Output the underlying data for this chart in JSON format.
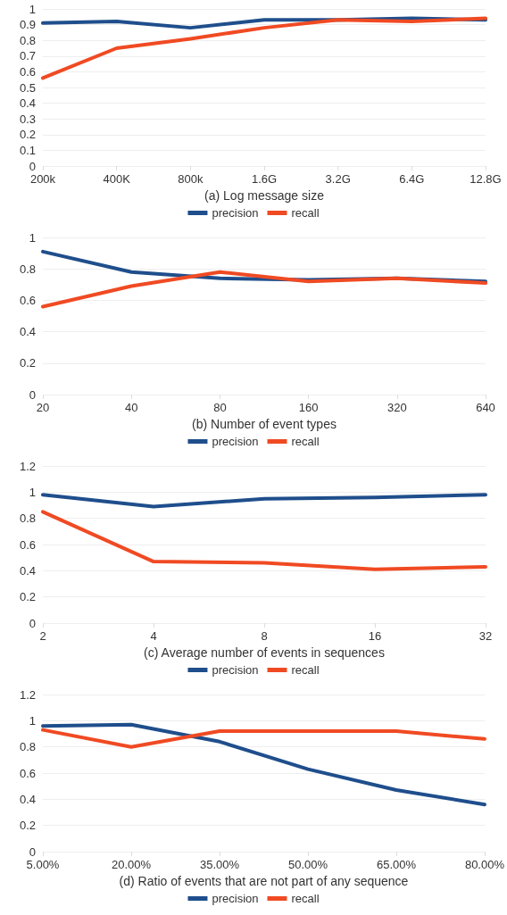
{
  "chart_data": [
    {
      "type": "line",
      "xlabel": "(a) Log message size",
      "categories": [
        "200k",
        "400K",
        "800k",
        "1.6G",
        "3.2G",
        "6.4G",
        "12.8G"
      ],
      "series": [
        {
          "name": "precision",
          "color": "#1f4e8c",
          "values": [
            0.91,
            0.92,
            0.88,
            0.93,
            0.93,
            0.94,
            0.93
          ]
        },
        {
          "name": "recall",
          "color": "#f04a23",
          "values": [
            0.56,
            0.75,
            0.81,
            0.88,
            0.93,
            0.92,
            0.94
          ]
        }
      ],
      "ylim": [
        0,
        1
      ],
      "yticks": [
        0,
        0.1,
        0.2,
        0.3,
        0.4,
        0.5,
        0.6,
        0.7,
        0.8,
        0.9,
        1
      ],
      "grid": "y",
      "legend": "bottom",
      "marker": "none",
      "line_style": "solid"
    },
    {
      "type": "line",
      "xlabel": "(b) Number of event types",
      "categories": [
        "20",
        "40",
        "80",
        "160",
        "320",
        "640"
      ],
      "series": [
        {
          "name": "precision",
          "color": "#1f4e8c",
          "values": [
            0.91,
            0.78,
            0.74,
            0.73,
            0.74,
            0.72
          ]
        },
        {
          "name": "recall",
          "color": "#f04a23",
          "values": [
            0.56,
            0.69,
            0.78,
            0.72,
            0.74,
            0.71
          ]
        }
      ],
      "ylim": [
        0,
        1
      ],
      "yticks": [
        0,
        0.2,
        0.4,
        0.6,
        0.8,
        1
      ],
      "grid": "y",
      "legend": "bottom",
      "marker": "none",
      "line_style": "solid"
    },
    {
      "type": "line",
      "xlabel": "(c) Average number of events in sequences",
      "categories": [
        "2",
        "4",
        "8",
        "16",
        "32"
      ],
      "series": [
        {
          "name": "precision",
          "color": "#1f4e8c",
          "values": [
            0.98,
            0.89,
            0.95,
            0.96,
            0.98
          ]
        },
        {
          "name": "recall",
          "color": "#f04a23",
          "values": [
            0.85,
            0.47,
            0.46,
            0.41,
            0.43
          ]
        }
      ],
      "ylim": [
        0,
        1.2
      ],
      "yticks": [
        0,
        0.2,
        0.4,
        0.6,
        0.8,
        1,
        1.2
      ],
      "grid": "y",
      "legend": "bottom",
      "marker": "none",
      "line_style": "solid"
    },
    {
      "type": "line",
      "xlabel": "(d) Ratio of events that are not part of any sequence",
      "categories": [
        "5.00%",
        "20.00%",
        "35.00%",
        "50.00%",
        "65.00%",
        "80.00%"
      ],
      "series": [
        {
          "name": "precision",
          "color": "#1f4e8c",
          "values": [
            0.96,
            0.97,
            0.84,
            0.63,
            0.47,
            0.36
          ]
        },
        {
          "name": "recall",
          "color": "#f04a23",
          "values": [
            0.93,
            0.8,
            0.92,
            0.92,
            0.92,
            0.86
          ]
        }
      ],
      "ylim": [
        0,
        1.2
      ],
      "yticks": [
        0,
        0.2,
        0.4,
        0.6,
        0.8,
        1,
        1.2
      ],
      "grid": "y",
      "legend": "bottom",
      "marker": "none",
      "line_style": "solid"
    }
  ]
}
